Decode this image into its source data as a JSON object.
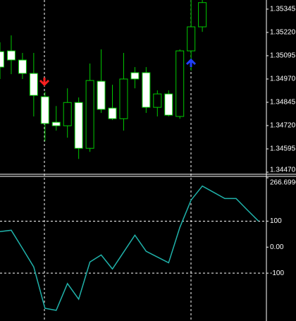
{
  "chart_data": [
    {
      "type": "candlestick",
      "categories": [
        null,
        null,
        null,
        null,
        null,
        null,
        null,
        null,
        null,
        null,
        null,
        null,
        null,
        null,
        null,
        null,
        null,
        null,
        null,
        null,
        null,
        null,
        null,
        null
      ],
      "open": [
        1.35117,
        1.35121,
        1.35072,
        1.35,
        1.34875,
        1.34738,
        1.34719,
        1.34844,
        1.34598,
        1.34958,
        1.34814,
        1.34757,
        1.35004,
        1.35004,
        1.34818,
        1.3489,
        1.34769,
        1.35121,
        1.3525,
        null,
        null,
        null,
        null,
        null
      ],
      "high": [
        1.35167,
        1.35204,
        1.3511,
        1.3511,
        1.34901,
        1.34825,
        1.3492,
        1.34871,
        1.35053,
        1.35129,
        1.34939,
        1.3511,
        1.35034,
        1.35034,
        1.34909,
        1.34909,
        1.35129,
        1.35394,
        1.354,
        null,
        null,
        null,
        null,
        null
      ],
      "low": [
        1.3497,
        1.34996,
        1.3497,
        1.34769,
        1.34636,
        1.34693,
        1.34655,
        1.34541,
        1.34579,
        1.34788,
        1.3475,
        1.34693,
        1.3492,
        1.34788,
        1.34769,
        1.34769,
        1.34757,
        1.35015,
        1.35223,
        null,
        null,
        null,
        null,
        null
      ],
      "close": [
        1.35034,
        1.35072,
        1.35,
        1.34882,
        1.34731,
        1.34719,
        1.34844,
        1.34598,
        1.34962,
        1.34807,
        1.34757,
        1.3497,
        1.3497,
        1.34818,
        1.3489,
        1.34776,
        1.35121,
        1.3525,
        1.3538,
        null,
        null,
        null,
        null,
        null
      ],
      "ylim": [
        1.34455,
        1.35394
      ],
      "yticks": [
        1.35345,
        {
          "value": 1.3522,
          "label": "1.35220"
        },
        1.35095,
        {
          "value": 1.3497,
          "label": "1.34970"
        },
        1.34845,
        {
          "value": 1.3472,
          "label": "1.34720"
        },
        1.34595,
        {
          "value": 1.3447,
          "label": "1.34470"
        }
      ],
      "color": "#00c800",
      "bull_color": "#000000",
      "bear_color": "#ffffff"
    },
    {
      "type": "line",
      "categories": [
        null,
        null,
        null,
        null,
        null,
        null,
        null,
        null,
        null,
        null,
        null,
        null,
        null,
        null,
        null,
        null,
        null,
        null,
        null,
        null,
        null,
        null,
        null,
        null
      ],
      "values": [
        60,
        65,
        -5,
        -76,
        -235,
        -243,
        -140,
        -200,
        -57,
        -30,
        -84,
        -19,
        46,
        -16,
        -38,
        -60,
        76,
        181,
        235,
        211,
        187,
        187,
        143,
        100
      ],
      "color": "#20b2aa",
      "ylim": [
        -284,
        266.6996
      ],
      "yticks": [
        266.6996,
        100,
        {
          "value": 0,
          "label": "0.00"
        },
        -100
      ],
      "levels": [
        100,
        -100
      ]
    }
  ]
}
